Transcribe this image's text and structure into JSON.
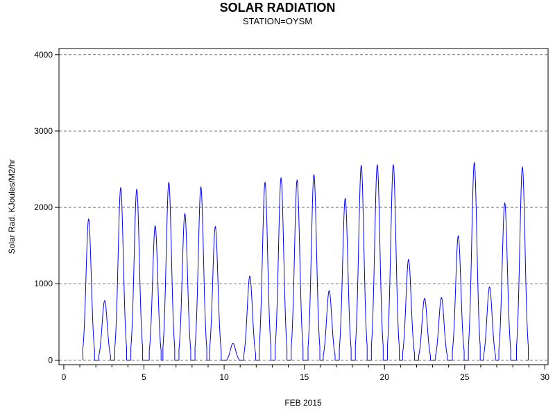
{
  "chart_data": {
    "type": "line",
    "title": "SOLAR RADIATION",
    "subtitle": "STATION=OYSM",
    "xlabel": "FEB 2015",
    "ylabel": "Solar Rad. KJoules/M2/hr",
    "xlim": [
      -0.3,
      30.2
    ],
    "ylim": [
      -60,
      4080
    ],
    "x_ticks": [
      0,
      5,
      10,
      15,
      20,
      25,
      30
    ],
    "y_ticks": [
      0,
      1000,
      2000,
      3000,
      4000
    ],
    "grid": "horizontal-dashed",
    "series": [
      {
        "color": "#0000ff",
        "daily_peaks": [
          {
            "day": 1,
            "x": 1.55,
            "peak": 1850
          },
          {
            "day": 2,
            "x": 2.55,
            "peak": 780
          },
          {
            "day": 3,
            "x": 3.55,
            "peak": 2260
          },
          {
            "day": 4,
            "x": 4.55,
            "peak": 2240
          },
          {
            "day": 5,
            "x": 5.7,
            "peak": 1760
          },
          {
            "day": 6,
            "x": 6.55,
            "peak": 2330
          },
          {
            "day": 7,
            "x": 7.55,
            "peak": 1920
          },
          {
            "day": 8,
            "x": 8.55,
            "peak": 2270
          },
          {
            "day": 9,
            "x": 9.45,
            "peak": 1750
          },
          {
            "day": 10,
            "x": 10.55,
            "peak": 220
          },
          {
            "day": 11,
            "x": 11.6,
            "peak": 1100
          },
          {
            "day": 12,
            "x": 12.55,
            "peak": 2330
          },
          {
            "day": 13,
            "x": 13.55,
            "peak": 2390
          },
          {
            "day": 14,
            "x": 14.55,
            "peak": 2360
          },
          {
            "day": 15,
            "x": 15.6,
            "peak": 2430
          },
          {
            "day": 16,
            "x": 16.55,
            "peak": 910
          },
          {
            "day": 17,
            "x": 17.55,
            "peak": 2120
          },
          {
            "day": 18,
            "x": 18.55,
            "peak": 2550
          },
          {
            "day": 19,
            "x": 19.55,
            "peak": 2560
          },
          {
            "day": 20,
            "x": 20.55,
            "peak": 2560
          },
          {
            "day": 21,
            "x": 21.5,
            "peak": 1320
          },
          {
            "day": 22,
            "x": 22.5,
            "peak": 810
          },
          {
            "day": 23,
            "x": 23.55,
            "peak": 820
          },
          {
            "day": 24,
            "x": 24.6,
            "peak": 1630
          },
          {
            "day": 25,
            "x": 25.6,
            "peak": 2590
          },
          {
            "day": 26,
            "x": 26.55,
            "peak": 960
          },
          {
            "day": 27,
            "x": 27.5,
            "peak": 2060
          },
          {
            "day": 28,
            "x": 28.6,
            "peak": 2530
          }
        ]
      }
    ]
  }
}
